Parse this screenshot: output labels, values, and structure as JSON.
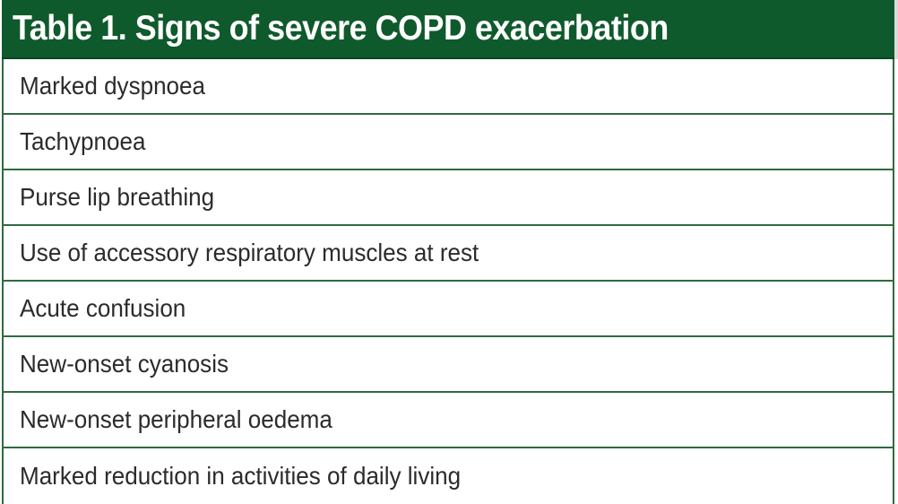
{
  "table": {
    "title": "Table 1. Signs of severe COPD exacerbation",
    "rows": [
      "Marked dyspnoea",
      "Tachypnoea",
      "Purse lip breathing",
      "Use of accessory respiratory muscles at rest",
      "Acute confusion",
      "New-onset cyanosis",
      "New-onset peripheral oedema",
      "Marked reduction in activities of daily living"
    ]
  },
  "colors": {
    "header_background": "#0f5a2c",
    "header_text": "#ffffff",
    "rule": "#2f6b3e",
    "body_text": "#2b2b2b"
  }
}
